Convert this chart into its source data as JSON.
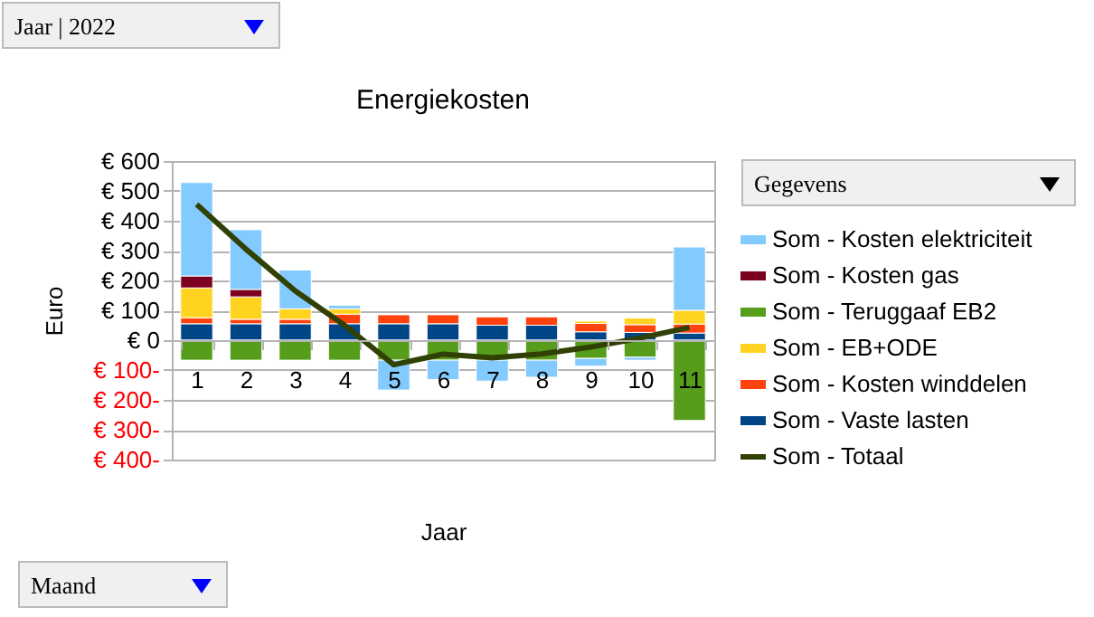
{
  "chart_data": {
    "type": "bar",
    "title": "Energiekosten",
    "xlabel": "Jaar",
    "ylabel": "Euro",
    "annotations": [
      "Jaar | 2022",
      "Gegevens",
      "Maand"
    ],
    "categories": [
      "1",
      "2",
      "3",
      "4",
      "5",
      "6",
      "7",
      "8",
      "9",
      "10",
      "11"
    ],
    "stacked": true,
    "series": [
      {
        "name": "Som - Vaste lasten",
        "color": "#004586",
        "values": [
          55,
          55,
          55,
          55,
          55,
          55,
          50,
          50,
          28,
          26,
          24
        ]
      },
      {
        "name": "Som - Kosten winddelen",
        "color": "#ff420e",
        "values": [
          20,
          15,
          15,
          32,
          30,
          30,
          28,
          28,
          28,
          26,
          30
        ]
      },
      {
        "name": "Som - EB+ODE",
        "color": "#ffd320",
        "values": [
          100,
          75,
          35,
          18,
          null,
          null,
          null,
          null,
          8,
          22,
          46
        ]
      },
      {
        "name": "Som - Teruggaaf EB2",
        "color": "#579d1c",
        "values": [
          -67,
          -67,
          -67,
          -67,
          -67,
          -67,
          -67,
          -67,
          -61,
          -57,
          -269
        ]
      },
      {
        "name": "Som - Kosten gas",
        "color": "#7e0021",
        "values": [
          40,
          25,
          null,
          null,
          null,
          null,
          null,
          null,
          null,
          null,
          null
        ]
      },
      {
        "name": "Som - Kosten elektriciteit",
        "color": "#83caff",
        "values": [
          313,
          200,
          130,
          12,
          -100,
          -65,
          -70,
          -57,
          -26,
          -10,
          212
        ]
      },
      {
        "name": "Som - Totaal",
        "type": "line",
        "color": "#314004",
        "values": [
          455,
          305,
          165,
          50,
          -82,
          -47,
          -59,
          -46,
          -23,
          7,
          43
        ]
      }
    ],
    "ylim": [
      -400,
      600
    ],
    "yticks": [
      {
        "value": -400,
        "label": "€ 400-"
      },
      {
        "value": -300,
        "label": "€ 300-"
      },
      {
        "value": -200,
        "label": "€ 200-"
      },
      {
        "value": -100,
        "label": "€ 100-"
      },
      {
        "value": 0,
        "label": "€ 0"
      },
      {
        "value": 100,
        "label": "€ 100"
      },
      {
        "value": 200,
        "label": "€ 200"
      },
      {
        "value": 300,
        "label": "€ 300"
      },
      {
        "value": 400,
        "label": "€ 400"
      },
      {
        "value": 500,
        "label": "€ 500"
      },
      {
        "value": 600,
        "label": "€ 600"
      }
    ],
    "grid": "y",
    "legend": "right"
  }
}
